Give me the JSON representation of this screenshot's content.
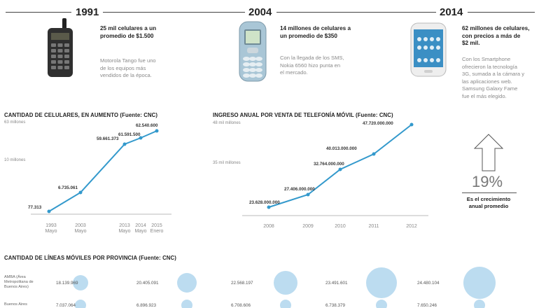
{
  "timeline": {
    "eras": [
      {
        "year": "1991",
        "head": "25 mil celulares a un\npromedio de $1.500",
        "body": "Motorola Tango fue uno\nde los equipos más\nvendidos de la época."
      },
      {
        "year": "2004",
        "head": "14 millones de celulares a\nun promedio de $350",
        "body": "Con la llegada de los SMS,\nNokia 6560 hizo punta en\nel mercado."
      },
      {
        "year": "2014",
        "head": "62 millones de celulares,\ncon precios a más de\n$2 mil.",
        "body": "Con los Smartphone\nofrecieron la tecnología\n3G, sumada a la cámara y\nlas aplicaciones web.\nSamsung Galaxy Fame\nfue el más elegido."
      }
    ]
  },
  "chart_data": [
    {
      "type": "line",
      "title": "CANTIDAD DE CELULARES, EN AUMENTO (Fuente: CNC)",
      "y_ticks": [
        "63 millones",
        "10 millones"
      ],
      "x_ticks": [
        {
          "year": "1993",
          "month": "Mayo"
        },
        {
          "year": "2003",
          "month": "Mayo"
        },
        {
          "year": "2013",
          "month": "Mayo"
        },
        {
          "year": "2014",
          "month": "Mayo"
        },
        {
          "year": "2015",
          "month": "Enero"
        }
      ],
      "points": [
        {
          "label": "77.313",
          "value": 77313
        },
        {
          "label": "6.735.061",
          "value": 6735061
        },
        {
          "label": "59.661.373",
          "value": 59661373
        },
        {
          "label": "61.591.500",
          "value": 61591500
        },
        {
          "label": "62.540.600",
          "value": 62540600
        }
      ],
      "color": "#3399cc"
    },
    {
      "type": "line",
      "title": "INGRESO ANUAL POR VENTA DE TELEFONÍA MÓVIL (Fuente: CNC)",
      "y_ticks": [
        "48 mil millones",
        "35 mil millones"
      ],
      "x_ticks": [
        "2008",
        "2009",
        "2010",
        "2011",
        "2012"
      ],
      "points": [
        {
          "label": "23.628.000.000",
          "value": 23628000000
        },
        {
          "label": "27.406.000.000",
          "value": 27406000000
        },
        {
          "label": "32.764.000.000",
          "value": 32764000000
        },
        {
          "label": "40.013.000.000",
          "value": 40013000000
        },
        {
          "label": "47.720.000.000",
          "value": 47720000000
        }
      ],
      "color": "#3399cc"
    }
  ],
  "growth": {
    "pct": "19%",
    "text": "Es el crecimiento\nanual promedio"
  },
  "provinces": {
    "title": "CANTIDAD DE LÍNEAS MÓVILES POR PROVINCIA (Fuente: CNC)",
    "rows": [
      {
        "name": "AMBA (Área\nMetropolitana de\nBuenos Aires)",
        "values": [
          "18.139.969",
          "20.405.091",
          "22.568.197",
          "23.491.601",
          "24.480.104"
        ]
      },
      {
        "name": "Buenos Aires",
        "values": [
          "7.037.064",
          "6.896.923",
          "6.708.606",
          "6.738.379",
          "7.650.246"
        ]
      }
    ],
    "bubble_color": "#bcdcf0"
  }
}
